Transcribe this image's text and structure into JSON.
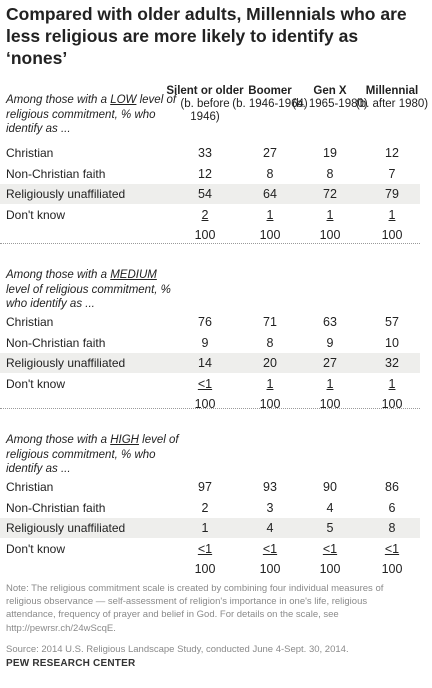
{
  "title": "Compared with older adults, Millennials who are less religious are more likely to identify as ‘nones’",
  "columns": [
    {
      "name": "Silent or older",
      "sub": "(b. before 1946)"
    },
    {
      "name": "Boomer",
      "sub": "(b. 1946-1964)"
    },
    {
      "name": "Gen X",
      "sub": "(b. 1965-1980)"
    },
    {
      "name": "Millennial",
      "sub": "(b. after 1980)"
    }
  ],
  "sections": [
    {
      "intro_before": "Among those with a ",
      "level": "LOW",
      "intro_after": " level of religious commitment, % who identify as ...",
      "rows": [
        {
          "label": "Christian",
          "values": [
            "33",
            "27",
            "19",
            "12"
          ]
        },
        {
          "label": "Non-Christian faith",
          "values": [
            "12",
            "8",
            "8",
            "7"
          ]
        },
        {
          "label": "Religiously unaffiliated",
          "values": [
            "54",
            "64",
            "72",
            "79"
          ]
        },
        {
          "label": "Don't know",
          "values": [
            "2",
            "1",
            "1",
            "1"
          ]
        },
        {
          "label": "",
          "values": [
            "100",
            "100",
            "100",
            "100"
          ]
        }
      ]
    },
    {
      "intro_before": "Among those with a ",
      "level": "MEDIUM",
      "intro_after": " level of religious commitment, % who identify as ...",
      "rows": [
        {
          "label": "Christian",
          "values": [
            "76",
            "71",
            "63",
            "57"
          ]
        },
        {
          "label": "Non-Christian faith",
          "values": [
            "9",
            "8",
            "9",
            "10"
          ]
        },
        {
          "label": "Religiously unaffiliated",
          "values": [
            "14",
            "20",
            "27",
            "32"
          ]
        },
        {
          "label": "Don't know",
          "values": [
            "<1",
            "1",
            "1",
            "1"
          ]
        },
        {
          "label": "",
          "values": [
            "100",
            "100",
            "100",
            "100"
          ]
        }
      ]
    },
    {
      "intro_before": "Among those with a ",
      "level": "HIGH",
      "intro_after": " level of religious commitment, % who identify as ...",
      "rows": [
        {
          "label": "Christian",
          "values": [
            "97",
            "93",
            "90",
            "86"
          ]
        },
        {
          "label": "Non-Christian faith",
          "values": [
            "2",
            "3",
            "4",
            "6"
          ]
        },
        {
          "label": "Religiously unaffiliated",
          "values": [
            "1",
            "4",
            "5",
            "8"
          ]
        },
        {
          "label": "Don't know",
          "values": [
            "<1",
            "<1",
            "<1",
            "<1"
          ]
        },
        {
          "label": "",
          "values": [
            "100",
            "100",
            "100",
            "100"
          ]
        }
      ]
    }
  ],
  "note": "Note: The religious commitment scale is created by combining four individual measures of religious observance — self-assessment of religion's importance in one's life, religious attendance, frequency of prayer and belief in God. For details on the scale, see http://pewrsr.ch/24wScqE.",
  "source": "Source: 2014 U.S. Religious Landscape Study, conducted June 4-Sept. 30, 2014.",
  "brand": "PEW RESEARCH CENTER",
  "colors": {
    "shade": "#eeeeec",
    "note_text": "#8a8a8a",
    "title_text": "#222222"
  },
  "chart_data": {
    "type": "table",
    "title": "Compared with older adults, Millennials who are less religious are more likely to identify as ‘nones’",
    "columns": [
      "Silent or older (b. before 1946)",
      "Boomer (b. 1946-1964)",
      "Gen X (b. 1965-1980)",
      "Millennial (b. after 1980)"
    ],
    "groups": [
      {
        "name": "LOW",
        "rows": [
          {
            "label": "Christian",
            "values": [
              33,
              27,
              19,
              12
            ]
          },
          {
            "label": "Non-Christian faith",
            "values": [
              12,
              8,
              8,
              7
            ]
          },
          {
            "label": "Religiously unaffiliated",
            "values": [
              54,
              64,
              72,
              79
            ]
          },
          {
            "label": "Don't know",
            "values": [
              "2",
              "1",
              "1",
              "1"
            ]
          },
          {
            "label": "",
            "values": [
              100,
              100,
              100,
              100
            ]
          }
        ]
      },
      {
        "name": "MEDIUM",
        "rows": [
          {
            "label": "Christian",
            "values": [
              76,
              71,
              63,
              57
            ]
          },
          {
            "label": "Non-Christian faith",
            "values": [
              9,
              8,
              9,
              10
            ]
          },
          {
            "label": "Religiously unaffiliated",
            "values": [
              14,
              20,
              27,
              32
            ]
          },
          {
            "label": "Don't know",
            "values": [
              "<1",
              "1",
              "1",
              "1"
            ]
          },
          {
            "label": "",
            "values": [
              100,
              100,
              100,
              100
            ]
          }
        ]
      },
      {
        "name": "HIGH",
        "rows": [
          {
            "label": "Christian",
            "values": [
              97,
              93,
              90,
              86
            ]
          },
          {
            "label": "Non-Christian faith",
            "values": [
              2,
              3,
              4,
              6
            ]
          },
          {
            "label": "Religiously unaffiliated",
            "values": [
              1,
              4,
              5,
              8
            ]
          },
          {
            "label": "Don't know",
            "values": [
              "<1",
              "<1",
              "<1",
              "<1"
            ]
          },
          {
            "label": "",
            "values": [
              100,
              100,
              100,
              100
            ]
          }
        ]
      }
    ]
  }
}
